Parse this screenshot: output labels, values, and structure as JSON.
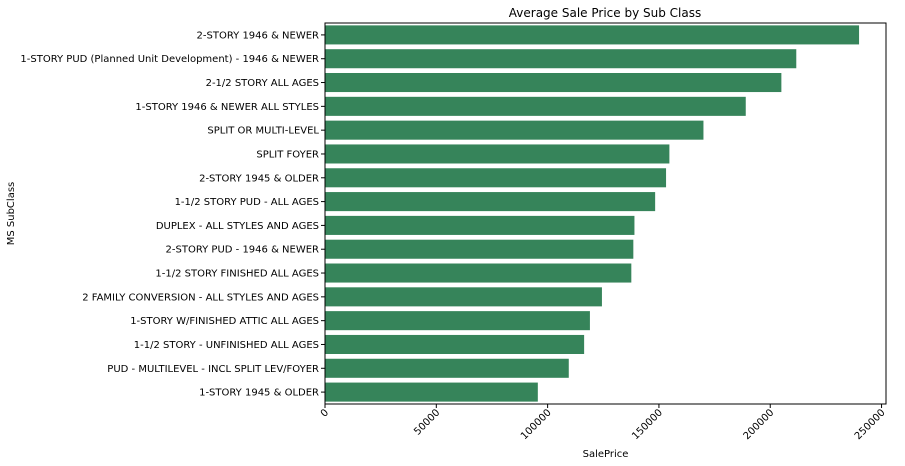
{
  "chart_data": {
    "type": "bar",
    "orientation": "horizontal",
    "title": "Average Sale Price by Sub Class",
    "xlabel": "SalePrice",
    "ylabel": "MS SubClass",
    "xlim": [
      0,
      252000
    ],
    "xticks": [
      0,
      50000,
      100000,
      150000,
      200000,
      250000
    ],
    "xtick_labels": [
      "0",
      "50000",
      "100000",
      "150000",
      "200000",
      "250000"
    ],
    "grid": false,
    "bar_color": "#36845A",
    "categories": [
      "2-STORY 1946 & NEWER",
      "1-STORY PUD (Planned Unit Development) - 1946 & NEWER",
      "2-1/2 STORY ALL AGES",
      "1-STORY 1946 & NEWER ALL STYLES",
      "SPLIT OR MULTI-LEVEL",
      "SPLIT FOYER",
      "2-STORY 1945 & OLDER",
      "1-1/2 STORY PUD - ALL AGES",
      "DUPLEX - ALL STYLES AND AGES",
      "2-STORY PUD - 1946 & NEWER",
      "1-1/2 STORY FINISHED ALL AGES",
      "2 FAMILY CONVERSION - ALL STYLES AND AGES",
      "1-STORY W/FINISHED ATTIC ALL AGES",
      "1-1/2 STORY - UNFINISHED ALL AGES",
      "PUD - MULTILEVEL - INCL SPLIT LEV/FOYER",
      "1-STORY 1945 & OLDER"
    ],
    "values": [
      239900,
      211700,
      205000,
      189000,
      170000,
      154700,
      153200,
      148300,
      139000,
      138500,
      137600,
      124400,
      119000,
      116400,
      109500,
      95600
    ]
  }
}
